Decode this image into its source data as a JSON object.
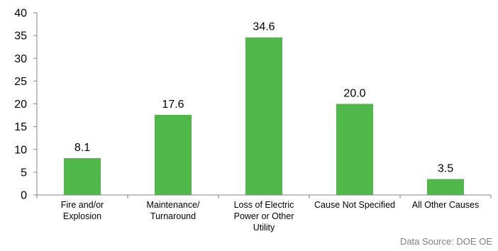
{
  "chart_data": {
    "type": "bar",
    "categories": [
      "Fire and/or Explosion",
      "Maintenance/ Turnaround",
      "Loss of Electric Power or Other Utility",
      "Cause Not Specified",
      "All Other Causes"
    ],
    "category_label_lines": [
      [
        "Fire and/or",
        "Explosion"
      ],
      [
        "Maintenance/",
        "Turnaround"
      ],
      [
        "Loss of Electric",
        "Power or Other",
        "Utility"
      ],
      [
        "Cause Not Specified"
      ],
      [
        "All Other Causes"
      ]
    ],
    "values": [
      8.1,
      17.6,
      34.6,
      20.0,
      3.5
    ],
    "data_labels": [
      "8.1",
      "17.6",
      "34.6",
      "20.0",
      "3.5"
    ],
    "title": "",
    "xlabel": "",
    "ylabel": "",
    "ylim": [
      0,
      40
    ],
    "yticks": [
      0,
      5,
      10,
      15,
      20,
      25,
      30,
      35,
      40
    ],
    "grid": false,
    "legend": "none",
    "bar_color": "#50b848",
    "axis_color": "#868686"
  },
  "source_note": "Data Source: DOE OE"
}
